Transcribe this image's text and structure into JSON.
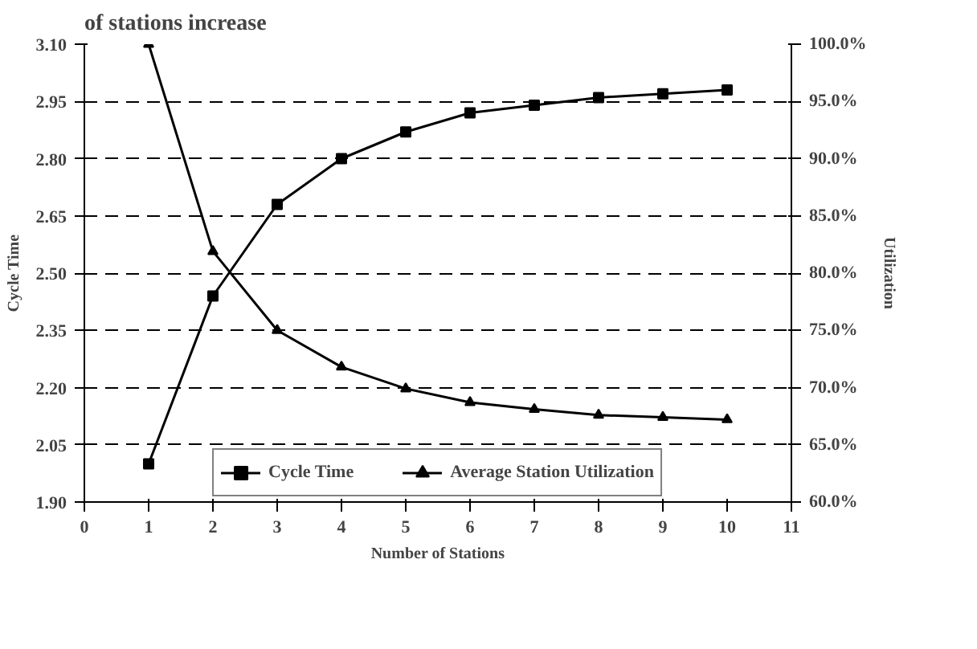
{
  "chart_data": {
    "type": "line",
    "title": "of stations increase",
    "xlabel": "Number of Stations",
    "ylabel": "Cycle Time",
    "y2label": "Utilization",
    "x": [
      1,
      2,
      3,
      4,
      5,
      6,
      7,
      8,
      9,
      10
    ],
    "series": [
      {
        "name": "Cycle Time",
        "color": "#000000",
        "marker": "square",
        "values": [
          2.0,
          2.44,
          2.68,
          2.8,
          2.87,
          2.92,
          2.94,
          2.96,
          2.97,
          2.98
        ]
      },
      {
        "name": "Average Station Utilization",
        "color": "#000000",
        "marker": "triangle",
        "axis": "y2",
        "values": [
          100,
          81.9,
          75.0,
          71.8,
          69.9,
          68.7,
          68.1,
          67.6,
          67.4,
          67.2
        ]
      }
    ],
    "xlim": [
      0,
      11
    ],
    "xticks": [
      0,
      1,
      2,
      3,
      4,
      5,
      6,
      7,
      8,
      9,
      10,
      11
    ],
    "ylim": [
      1.9,
      3.1
    ],
    "yticks": [
      {
        "value": 1.9,
        "label": "1.90"
      },
      {
        "value": 2.05,
        "label": "2.05"
      },
      {
        "value": 2.2,
        "label": "2.20"
      },
      {
        "value": 2.35,
        "label": "2.35"
      },
      {
        "value": 2.5,
        "label": "2.50"
      },
      {
        "value": 2.65,
        "label": "2.65"
      },
      {
        "value": 2.8,
        "label": "2.80"
      },
      {
        "value": 2.95,
        "label": "2.95"
      },
      {
        "value": 3.1,
        "label": "3.10"
      }
    ],
    "y2lim": [
      60,
      100
    ],
    "y2ticks": [
      {
        "value": 60,
        "label": "60.0%"
      },
      {
        "value": 65,
        "label": "65.0%"
      },
      {
        "value": 70,
        "label": "70.0%"
      },
      {
        "value": 75,
        "label": "75.0%"
      },
      {
        "value": 80,
        "label": "80.0%"
      },
      {
        "value": 85,
        "label": "85.0%"
      },
      {
        "value": 90,
        "label": "90.0%"
      },
      {
        "value": 95,
        "label": "95.0%"
      },
      {
        "value": 100,
        "label": "100.0%"
      }
    ],
    "grid": "y",
    "legend": "bottom",
    "line_style": "solid"
  }
}
